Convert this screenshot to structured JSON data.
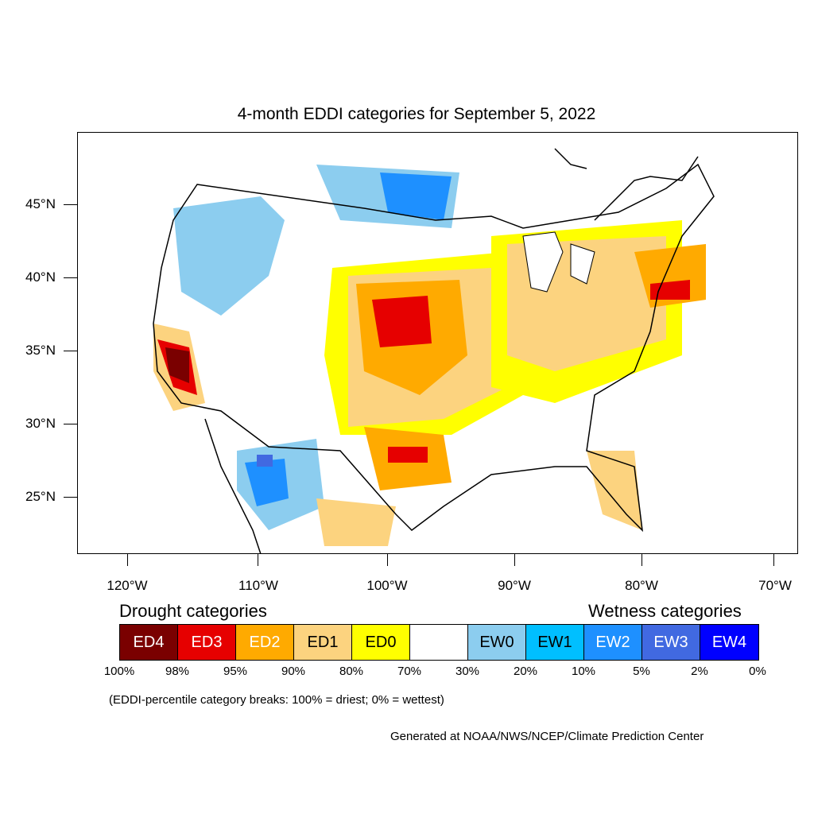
{
  "title": "4-month EDDI categories for September 5, 2022",
  "latitude_labels": [
    "45°N",
    "40°N",
    "35°N",
    "30°N",
    "25°N"
  ],
  "longitude_labels": [
    "120°W",
    "110°W",
    "100°W",
    "90°W",
    "80°W",
    "70°W"
  ],
  "legend": {
    "drought_heading": "Drought categories",
    "wetness_heading": "Wetness categories",
    "categories": [
      {
        "label": "ED4",
        "color": "#7a0000",
        "text_color": "#ffffff"
      },
      {
        "label": "ED3",
        "color": "#e60000",
        "text_color": "#ffffff"
      },
      {
        "label": "ED2",
        "color": "#ffaa00",
        "text_color": "#ffffff"
      },
      {
        "label": "ED1",
        "color": "#fcd37f",
        "text_color": "#000000"
      },
      {
        "label": "ED0",
        "color": "#ffff00",
        "text_color": "#000000"
      },
      {
        "label": "",
        "color": "#ffffff",
        "text_color": "#000000"
      },
      {
        "label": "EW0",
        "color": "#8ccdef",
        "text_color": "#000000"
      },
      {
        "label": "EW1",
        "color": "#00bfff",
        "text_color": "#000000"
      },
      {
        "label": "EW2",
        "color": "#1e90ff",
        "text_color": "#ffffff"
      },
      {
        "label": "EW3",
        "color": "#4169e1",
        "text_color": "#ffffff"
      },
      {
        "label": "EW4",
        "color": "#0000ff",
        "text_color": "#ffffff"
      }
    ],
    "breaks": [
      "100%",
      "98%",
      "95%",
      "90%",
      "80%",
      "70%",
      "30%",
      "20%",
      "10%",
      "5%",
      "2%",
      "0%"
    ]
  },
  "note": "(EDDI-percentile category breaks: 100% = driest; 0% = wettest)",
  "credit": "Generated at NOAA/NWS/NCEP/Climate Prediction Center"
}
